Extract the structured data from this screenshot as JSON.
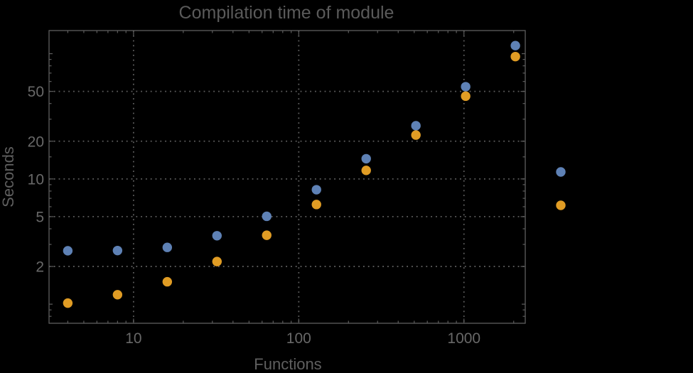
{
  "title": "Compilation time of module",
  "colors": {
    "background": "#000000",
    "frame": "#5e5e5e",
    "grid": "#5e5e5e",
    "title_text": "#5a5a5a",
    "axis_label_text": "#5f5f5f",
    "tick_text": "#686868",
    "series_blue": "#5e81b5",
    "series_orange": "#e09c24"
  },
  "chart_data": {
    "type": "scatter",
    "title": "Compilation time of module",
    "xlabel": "Functions",
    "ylabel": "Seconds",
    "x_scale": "log",
    "y_scale": "log",
    "xlim": [
      3.08,
      2350
    ],
    "ylim": [
      0.704,
      153
    ],
    "x_ticks": [
      10,
      100,
      1000
    ],
    "x_tick_labels": [
      "10",
      "100",
      "1000"
    ],
    "x_minor_ticks": [
      4,
      5,
      6,
      7,
      8,
      9,
      20,
      30,
      40,
      50,
      60,
      70,
      80,
      90,
      200,
      300,
      400,
      500,
      600,
      700,
      800,
      900,
      2000
    ],
    "y_ticks": [
      2,
      5,
      10,
      20,
      50
    ],
    "y_tick_labels": [
      "2",
      "5",
      "10",
      "20",
      "50"
    ],
    "y_medium_ticks": [
      1,
      100
    ],
    "y_minor_ticks": [
      0.8,
      0.9,
      3,
      4,
      6,
      7,
      8,
      9,
      15,
      30,
      40,
      60,
      70,
      80,
      90
    ],
    "grid": "dotted",
    "grid_x_values": [
      10,
      100,
      1000
    ],
    "grid_y_values": [
      2,
      5,
      10,
      20,
      50
    ],
    "x": [
      4,
      8,
      16,
      32,
      64,
      128,
      256,
      512,
      1024,
      2048
    ],
    "series": [
      {
        "name": "series-blue",
        "color": "#5e81b5",
        "values": [
          2.67,
          2.68,
          2.84,
          3.52,
          5.03,
          8.2,
          14.5,
          26.6,
          54.5,
          116
        ]
      },
      {
        "name": "series-orange",
        "color": "#e09c24",
        "values": [
          1.02,
          1.19,
          1.51,
          2.19,
          3.55,
          6.25,
          11.7,
          22.4,
          45.8,
          94.8
        ]
      }
    ],
    "legend": {
      "position": "right-outside",
      "entries": [
        {
          "series": "series-blue",
          "color": "#5e81b5",
          "label": ""
        },
        {
          "series": "series-orange",
          "color": "#e09c24",
          "label": ""
        }
      ]
    }
  }
}
